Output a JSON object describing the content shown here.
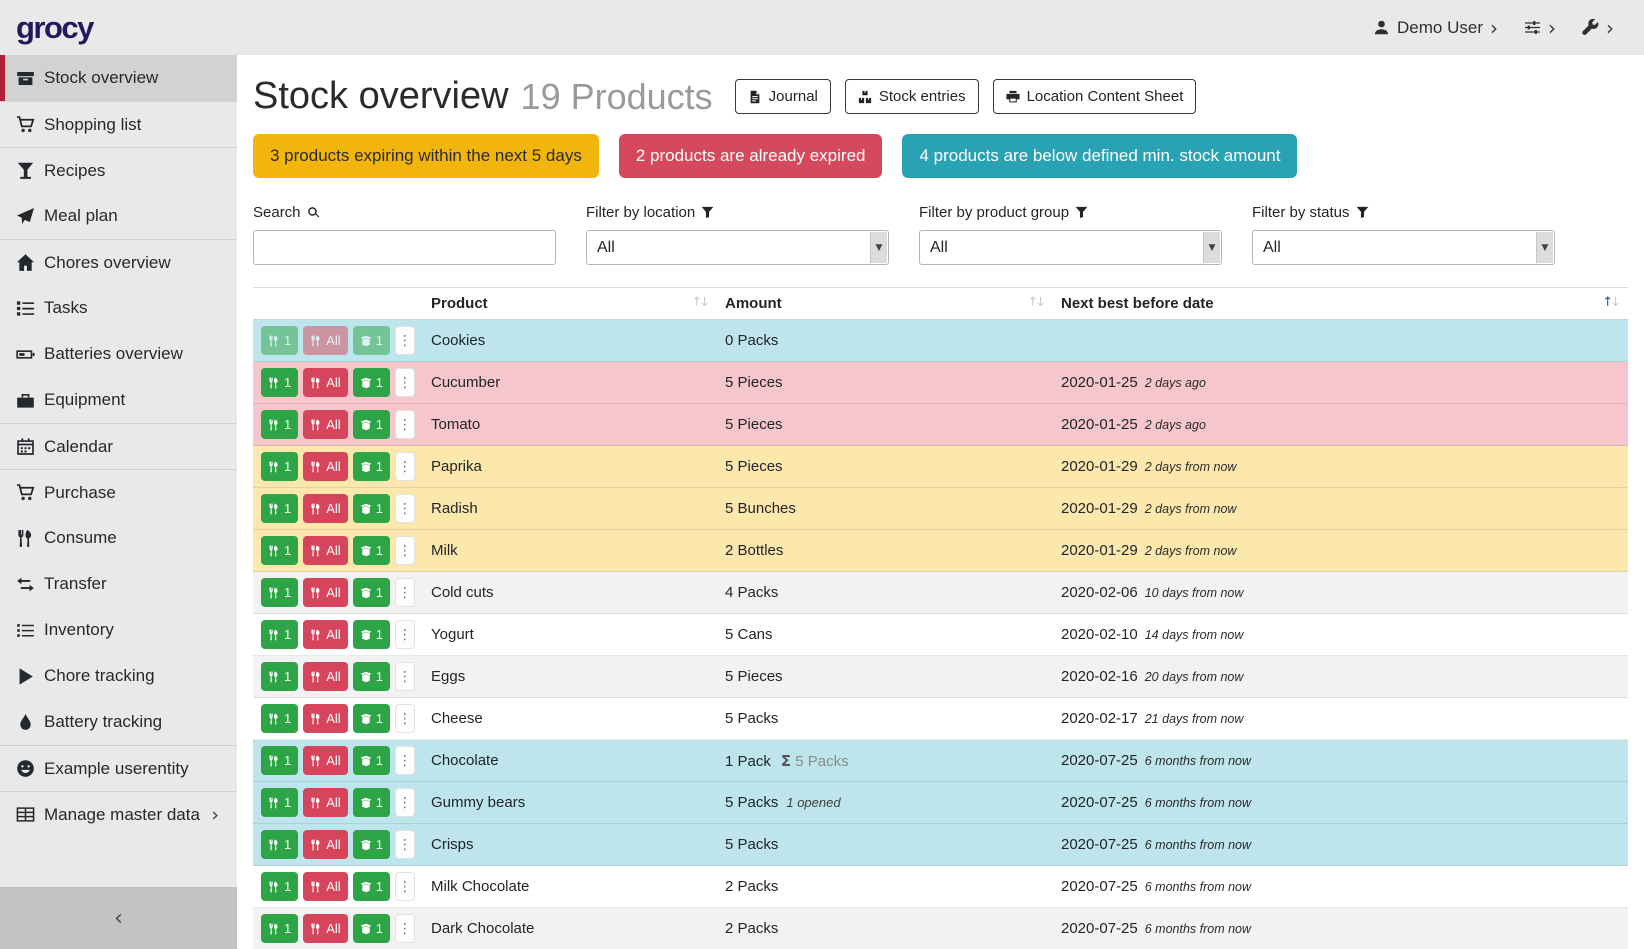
{
  "brand": "grocy",
  "navbar": {
    "user_label": "Demo User",
    "icons": [
      "user-icon",
      "sliders-icon",
      "wrench-icon"
    ]
  },
  "glyphs": {
    "chevron_right": "›",
    "chevron_left": "‹",
    "dots_vertical": "⋮",
    "sigma": "Σ",
    "sort_up": "↑",
    "sort_down": "↓",
    "select_caret": "▼"
  },
  "colors": {
    "accent_red": "#b01f3a",
    "logo": "#221a5c",
    "alert_yellow": "#f2b50b",
    "alert_red": "#d6495c",
    "alert_teal": "#29a2b3",
    "row_info": "#bee5eb",
    "row_danger": "#f5c6cb",
    "row_warning": "#fce8ac",
    "button_green": "#2da546",
    "button_red": "#d6455c"
  },
  "sidebar": {
    "items": [
      {
        "label": "Stock overview",
        "icon": "box-icon",
        "active": true
      },
      {
        "label": "Shopping list",
        "icon": "cart-icon"
      },
      {
        "label": "Recipes",
        "icon": "cocktail-icon"
      },
      {
        "label": "Meal plan",
        "icon": "paper-plane-icon"
      },
      {
        "label": "Chores overview",
        "icon": "home-icon"
      },
      {
        "label": "Tasks",
        "icon": "tasks-icon"
      },
      {
        "label": "Batteries overview",
        "icon": "battery-icon"
      },
      {
        "label": "Equipment",
        "icon": "toolbox-icon"
      },
      {
        "label": "Calendar",
        "icon": "calendar-icon"
      },
      {
        "label": "Purchase",
        "icon": "cart-icon"
      },
      {
        "label": "Consume",
        "icon": "utensils-icon"
      },
      {
        "label": "Transfer",
        "icon": "transfer-icon"
      },
      {
        "label": "Inventory",
        "icon": "list-icon"
      },
      {
        "label": "Chore tracking",
        "icon": "play-icon"
      },
      {
        "label": "Battery tracking",
        "icon": "drop-icon"
      },
      {
        "label": "Example userentity",
        "icon": "smiley-icon"
      },
      {
        "label": "Manage master data",
        "icon": "table-icon",
        "has_submenu": true
      }
    ]
  },
  "header": {
    "title": "Stock overview",
    "subtitle": "19 Products",
    "buttons": [
      {
        "label": "Journal",
        "icon": "file-icon"
      },
      {
        "label": "Stock entries",
        "icon": "boxes-icon"
      },
      {
        "label": "Location Content Sheet",
        "icon": "print-icon"
      }
    ]
  },
  "alerts": [
    {
      "text": "3 products expiring within the next 5 days",
      "type": "warning"
    },
    {
      "text": "2 products are already expired",
      "type": "danger"
    },
    {
      "text": "4 products are below defined min. stock amount",
      "type": "info"
    }
  ],
  "filters": {
    "search_label": "Search",
    "search_value": "",
    "location_label": "Filter by location",
    "location_value": "All",
    "group_label": "Filter by product group",
    "group_value": "All",
    "status_label": "Filter by status",
    "status_value": "All"
  },
  "table": {
    "columns": [
      "Product",
      "Amount",
      "Next best before date"
    ],
    "sort": {
      "column": "Next best before date",
      "direction": "asc"
    },
    "actions": {
      "consume_one": "1",
      "consume_all": "All",
      "open_one": "1"
    },
    "rows": [
      {
        "product": "Cookies",
        "amount": "0 Packs",
        "date": "",
        "date_note": "",
        "highlight": "info",
        "disabled": true
      },
      {
        "product": "Cucumber",
        "amount": "5 Pieces",
        "date": "2020-01-25",
        "date_note": "2 days ago",
        "highlight": "danger"
      },
      {
        "product": "Tomato",
        "amount": "5 Pieces",
        "date": "2020-01-25",
        "date_note": "2 days ago",
        "highlight": "danger"
      },
      {
        "product": "Paprika",
        "amount": "5 Pieces",
        "date": "2020-01-29",
        "date_note": "2 days from now",
        "highlight": "warning"
      },
      {
        "product": "Radish",
        "amount": "5 Bunches",
        "date": "2020-01-29",
        "date_note": "2 days from now",
        "highlight": "warning"
      },
      {
        "product": "Milk",
        "amount": "2 Bottles",
        "date": "2020-01-29",
        "date_note": "2 days from now",
        "highlight": "warning"
      },
      {
        "product": "Cold cuts",
        "amount": "4 Packs",
        "date": "2020-02-06",
        "date_note": "10 days from now",
        "highlight": "none"
      },
      {
        "product": "Yogurt",
        "amount": "5 Cans",
        "date": "2020-02-10",
        "date_note": "14 days from now",
        "highlight": "none"
      },
      {
        "product": "Eggs",
        "amount": "5 Pieces",
        "date": "2020-02-16",
        "date_note": "20 days from now",
        "highlight": "none"
      },
      {
        "product": "Cheese",
        "amount": "5 Packs",
        "date": "2020-02-17",
        "date_note": "21 days from now",
        "highlight": "none"
      },
      {
        "product": "Chocolate",
        "amount": "1 Pack",
        "sum": "5 Packs",
        "date": "2020-07-25",
        "date_note": "6 months from now",
        "highlight": "info"
      },
      {
        "product": "Gummy bears",
        "amount": "5 Packs",
        "note": "1 opened",
        "date": "2020-07-25",
        "date_note": "6 months from now",
        "highlight": "info"
      },
      {
        "product": "Crisps",
        "amount": "5 Packs",
        "date": "2020-07-25",
        "date_note": "6 months from now",
        "highlight": "info"
      },
      {
        "product": "Milk Chocolate",
        "amount": "2 Packs",
        "date": "2020-07-25",
        "date_note": "6 months from now",
        "highlight": "none"
      },
      {
        "product": "Dark Chocolate",
        "amount": "2 Packs",
        "date": "2020-07-25",
        "date_note": "6 months from now",
        "highlight": "none"
      },
      {
        "partial": true,
        "highlight": "none"
      }
    ]
  }
}
